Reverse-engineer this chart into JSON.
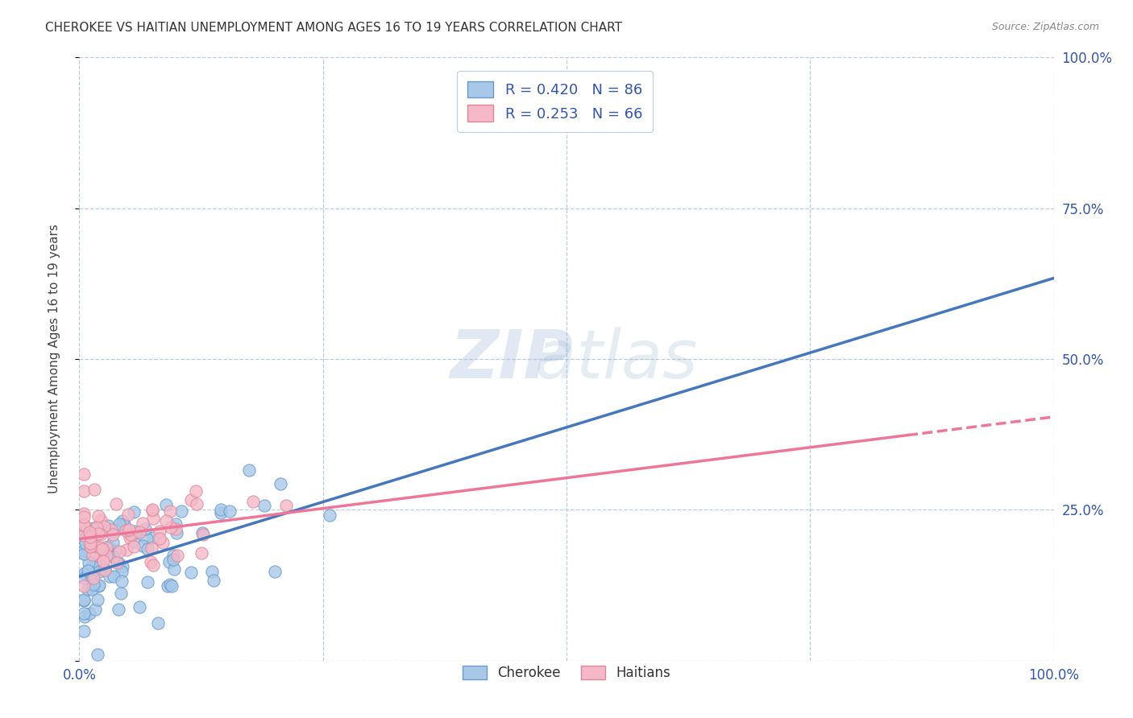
{
  "title": "CHEROKEE VS HAITIAN UNEMPLOYMENT AMONG AGES 16 TO 19 YEARS CORRELATION CHART",
  "source": "Source: ZipAtlas.com",
  "ylabel": "Unemployment Among Ages 16 to 19 years",
  "xlim": [
    0,
    1.0
  ],
  "ylim": [
    0,
    1.0
  ],
  "cherokee_color": "#A8C8E8",
  "cherokee_edge_color": "#6699CC",
  "haitian_color": "#F4B8C8",
  "haitian_edge_color": "#DD8899",
  "cherokee_line_color": "#4477BB",
  "haitian_line_color": "#EE7799",
  "cherokee_R": 0.42,
  "cherokee_N": 86,
  "haitian_R": 0.253,
  "haitian_N": 66,
  "watermark_zip": "ZIP",
  "watermark_atlas": "atlas",
  "background_color": "#FFFFFF",
  "grid_color": "#BBCCDD",
  "legend_label_color": "#3355AA",
  "axis_label_color": "#3355AA",
  "title_color": "#333333",
  "source_color": "#888888",
  "ylabel_color": "#444444"
}
